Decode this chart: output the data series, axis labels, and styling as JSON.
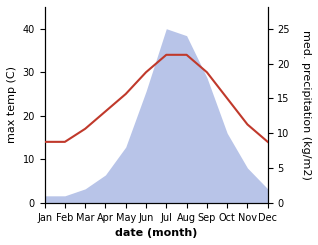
{
  "months": [
    "Jan",
    "Feb",
    "Mar",
    "Apr",
    "May",
    "Jun",
    "Jul",
    "Aug",
    "Sep",
    "Oct",
    "Nov",
    "Dec"
  ],
  "max_temp": [
    14,
    14,
    17,
    21,
    25,
    30,
    34,
    34,
    30,
    24,
    18,
    14
  ],
  "precipitation": [
    1,
    1,
    2,
    4,
    8,
    16,
    25,
    24,
    18,
    10,
    5,
    2
  ],
  "temp_color": "#c0392b",
  "precip_fill": "#b8c4e8",
  "temp_ylim": [
    0,
    45
  ],
  "precip_ylim": [
    0,
    28.125
  ],
  "temp_yticks": [
    0,
    10,
    20,
    30,
    40
  ],
  "precip_yticks": [
    0,
    5,
    10,
    15,
    20,
    25
  ],
  "ylabel_left": "max temp (C)",
  "ylabel_right": "med. precipitation (kg/m2)",
  "xlabel": "date (month)",
  "label_fontsize": 8,
  "tick_fontsize": 7
}
